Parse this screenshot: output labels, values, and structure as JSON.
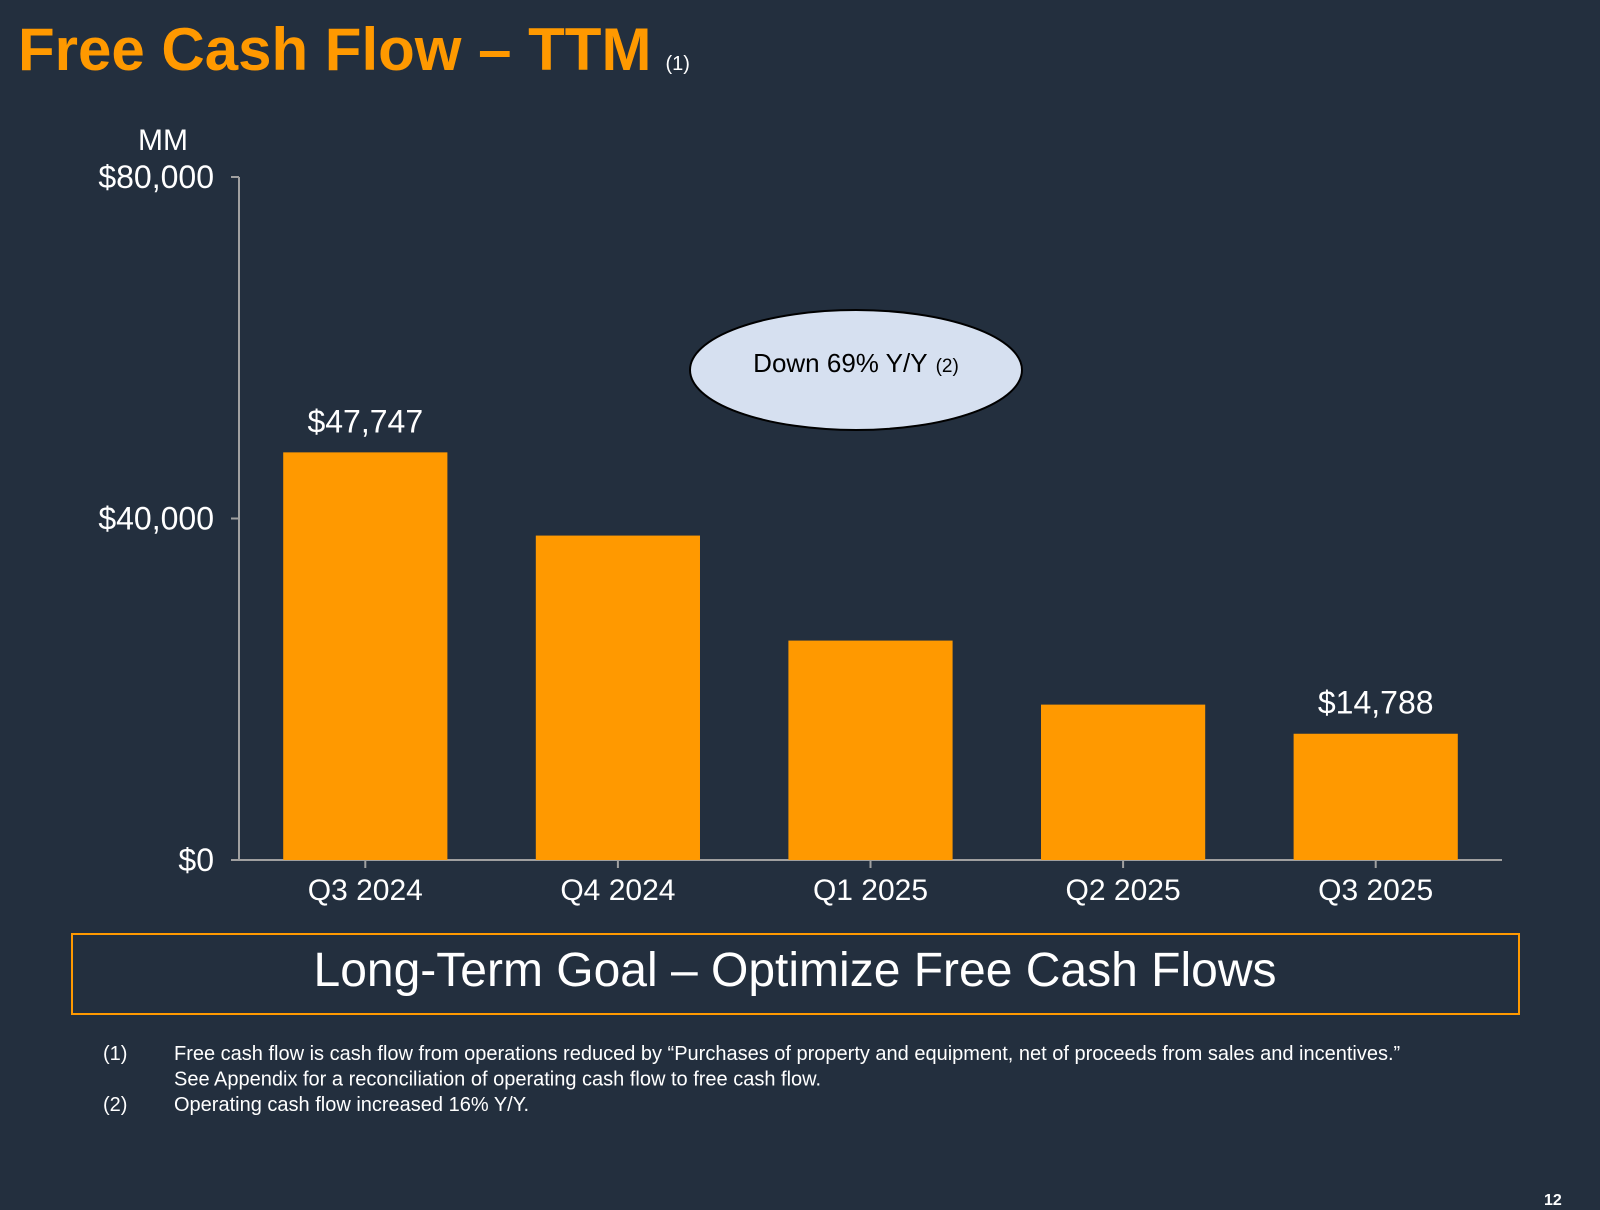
{
  "chart_data": {
    "type": "bar",
    "title": "Free Cash Flow – TTM",
    "title_note": "(1)",
    "y_unit": "MM",
    "categories": [
      "Q3 2024",
      "Q4 2024",
      "Q1 2025",
      "Q2 2025",
      "Q3 2025"
    ],
    "values": [
      47747,
      38000,
      25700,
      18200,
      14788
    ],
    "value_labels": [
      "$47,747",
      null,
      null,
      null,
      "$14,788"
    ],
    "color": "#ff9900",
    "ylim": [
      0,
      80000
    ],
    "yticks": [
      {
        "value": 0,
        "label": "$0"
      },
      {
        "value": 40000,
        "label": "$40,000"
      },
      {
        "value": 80000,
        "label": "$80,000"
      }
    ],
    "grid": false,
    "annotation": {
      "text": "Down 69% Y/Y",
      "note": "(2)"
    }
  },
  "goal": "Long-Term Goal – Optimize Free Cash Flows",
  "footnotes": [
    {
      "marker": "(1)",
      "lines": [
        "Free cash flow is cash flow from operations reduced by “Purchases of property and equipment, net of proceeds from sales and incentives.”",
        "See Appendix for a reconciliation of operating cash flow to free cash flow."
      ]
    },
    {
      "marker": "(2)",
      "lines": [
        "Operating cash flow increased 16% Y/Y."
      ]
    }
  ],
  "page_number": "12"
}
